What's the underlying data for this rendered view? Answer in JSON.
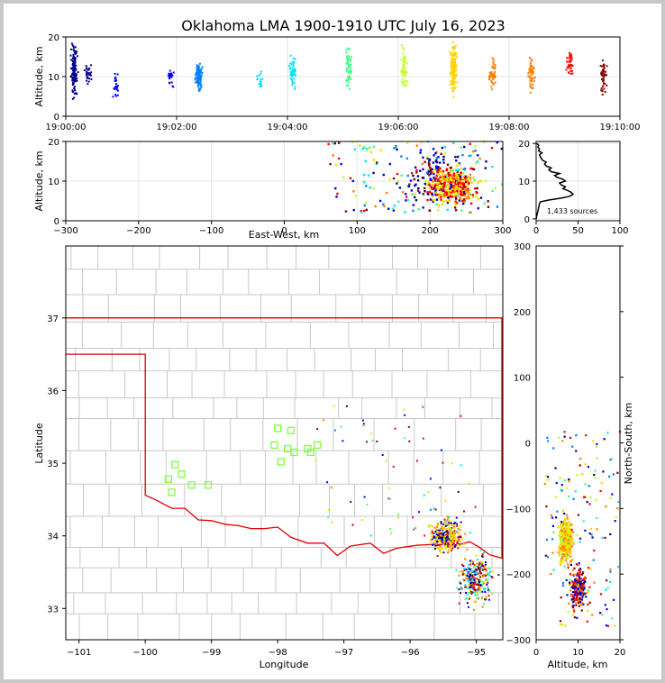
{
  "title": "Oklahoma LMA 1900-1910 UTC July 16, 2023",
  "colors": {
    "background_frame": "#c8c8c8",
    "state_border": "#e00000",
    "county_lines": "#c8c8c8",
    "station_marker": "#80ff40",
    "histogram_line": "#000000",
    "time_colormap": [
      "#00008b",
      "#0000ff",
      "#0080ff",
      "#00e5ff",
      "#40ff80",
      "#c0ff20",
      "#ffd400",
      "#ff7f00",
      "#ff0000",
      "#8b0000"
    ]
  },
  "chart_data": [
    {
      "id": "time_height",
      "type": "scatter",
      "xlabel": "",
      "ylabel": "Altitude, km",
      "x_ticks": [
        "19:00:00",
        "19:02:00",
        "19:04:00",
        "19:06:00",
        "19:08:00",
        "19:10:00"
      ],
      "xlim_minutes": [
        0,
        10
      ],
      "ylim": [
        0,
        20
      ],
      "y_ticks": [
        0,
        10,
        20
      ],
      "grid": true,
      "clusters": [
        {
          "time_min": 0.15,
          "alt_range": [
            3,
            20
          ],
          "n": 130,
          "color_index": 0
        },
        {
          "time_min": 0.4,
          "alt_range": [
            8,
            14
          ],
          "n": 30,
          "color_index": 0
        },
        {
          "time_min": 0.9,
          "alt_range": [
            3,
            13
          ],
          "n": 25,
          "color_index": 1
        },
        {
          "time_min": 1.9,
          "alt_range": [
            7,
            13
          ],
          "n": 25,
          "color_index": 1
        },
        {
          "time_min": 2.4,
          "alt_range": [
            5,
            15
          ],
          "n": 90,
          "color_index": 2
        },
        {
          "time_min": 3.5,
          "alt_range": [
            6,
            12
          ],
          "n": 20,
          "color_index": 3
        },
        {
          "time_min": 4.1,
          "alt_range": [
            6,
            16
          ],
          "n": 60,
          "color_index": 3
        },
        {
          "time_min": 5.1,
          "alt_range": [
            4,
            19
          ],
          "n": 60,
          "color_index": 4
        },
        {
          "time_min": 6.1,
          "alt_range": [
            4,
            20
          ],
          "n": 55,
          "color_index": 5
        },
        {
          "time_min": 7.0,
          "alt_range": [
            3,
            20
          ],
          "n": 150,
          "color_index": 6
        },
        {
          "time_min": 7.7,
          "alt_range": [
            6,
            16
          ],
          "n": 50,
          "color_index": 7
        },
        {
          "time_min": 8.4,
          "alt_range": [
            5,
            17
          ],
          "n": 55,
          "color_index": 7
        },
        {
          "time_min": 9.1,
          "alt_range": [
            8,
            18
          ],
          "n": 40,
          "color_index": 8
        },
        {
          "time_min": 9.7,
          "alt_range": [
            3,
            17
          ],
          "n": 45,
          "color_index": 9
        }
      ]
    },
    {
      "id": "ew_height",
      "type": "scatter",
      "xlabel": "East-West, km",
      "ylabel": "Altitude, km",
      "xlim": [
        -300,
        300
      ],
      "x_ticks": [
        -300,
        -200,
        -100,
        0,
        100,
        200,
        300
      ],
      "ylim": [
        0,
        20
      ],
      "y_ticks": [
        0,
        10,
        20
      ],
      "grid": true
    },
    {
      "id": "altitude_histogram",
      "type": "line",
      "xlabel": "",
      "ylabel": "",
      "xlim": [
        0,
        100
      ],
      "x_ticks": [
        0,
        50,
        100
      ],
      "ylim": [
        0,
        20
      ],
      "y_ticks": [
        0,
        10,
        20
      ],
      "annotation": "1,433 sources",
      "profile": [
        [
          0,
          0
        ],
        [
          1,
          1
        ],
        [
          2,
          2
        ],
        [
          3,
          3
        ],
        [
          4,
          4
        ],
        [
          5,
          4.5
        ],
        [
          15,
          5
        ],
        [
          30,
          5.5
        ],
        [
          40,
          6
        ],
        [
          44,
          6.5
        ],
        [
          42,
          7
        ],
        [
          38,
          7.5
        ],
        [
          32,
          8
        ],
        [
          35,
          8.5
        ],
        [
          30,
          9
        ],
        [
          28,
          9.5
        ],
        [
          35,
          10
        ],
        [
          32,
          10.5
        ],
        [
          25,
          11
        ],
        [
          22,
          11.5
        ],
        [
          28,
          12
        ],
        [
          18,
          12.5
        ],
        [
          15,
          13
        ],
        [
          18,
          13.5
        ],
        [
          12,
          14
        ],
        [
          10,
          14.5
        ],
        [
          12,
          15
        ],
        [
          8,
          15.5
        ],
        [
          6,
          16
        ],
        [
          5,
          16.5
        ],
        [
          4,
          17
        ],
        [
          7,
          17.5
        ],
        [
          3,
          18
        ],
        [
          4,
          18.5
        ],
        [
          2,
          19
        ],
        [
          3,
          19.5
        ],
        [
          1,
          20
        ]
      ]
    },
    {
      "id": "plan_view",
      "type": "scatter",
      "xlabel": "Longitude",
      "ylabel": "Latitude",
      "xlim": [
        -101.2,
        -94.6
      ],
      "x_ticks": [
        "−101",
        "−100",
        "−99",
        "−98",
        "−97",
        "−96",
        "−95"
      ],
      "ylim": [
        32.57,
        37.99
      ],
      "y_ticks": [
        "33",
        "34",
        "35",
        "36",
        "37"
      ],
      "stations": [
        [
          -99.55,
          34.98
        ],
        [
          -99.45,
          34.85
        ],
        [
          -99.6,
          34.6
        ],
        [
          -99.3,
          34.7
        ],
        [
          -99.65,
          34.78
        ],
        [
          -99.05,
          34.7
        ],
        [
          -98.0,
          35.48
        ],
        [
          -98.05,
          35.25
        ],
        [
          -97.8,
          35.45
        ],
        [
          -97.75,
          35.15
        ],
        [
          -97.95,
          35.02
        ],
        [
          -97.55,
          35.2
        ],
        [
          -97.4,
          35.25
        ],
        [
          -97.5,
          35.15
        ],
        [
          -97.85,
          35.2
        ]
      ]
    },
    {
      "id": "ns_height",
      "type": "scatter",
      "xlabel": "Altitude, km",
      "ylabel": "North-South, km",
      "xlim": [
        0,
        20
      ],
      "x_ticks": [
        0,
        10,
        20
      ],
      "ylim": [
        -300,
        300
      ],
      "y_ticks": [
        -300,
        -200,
        -100,
        0,
        100,
        200,
        300
      ]
    }
  ]
}
